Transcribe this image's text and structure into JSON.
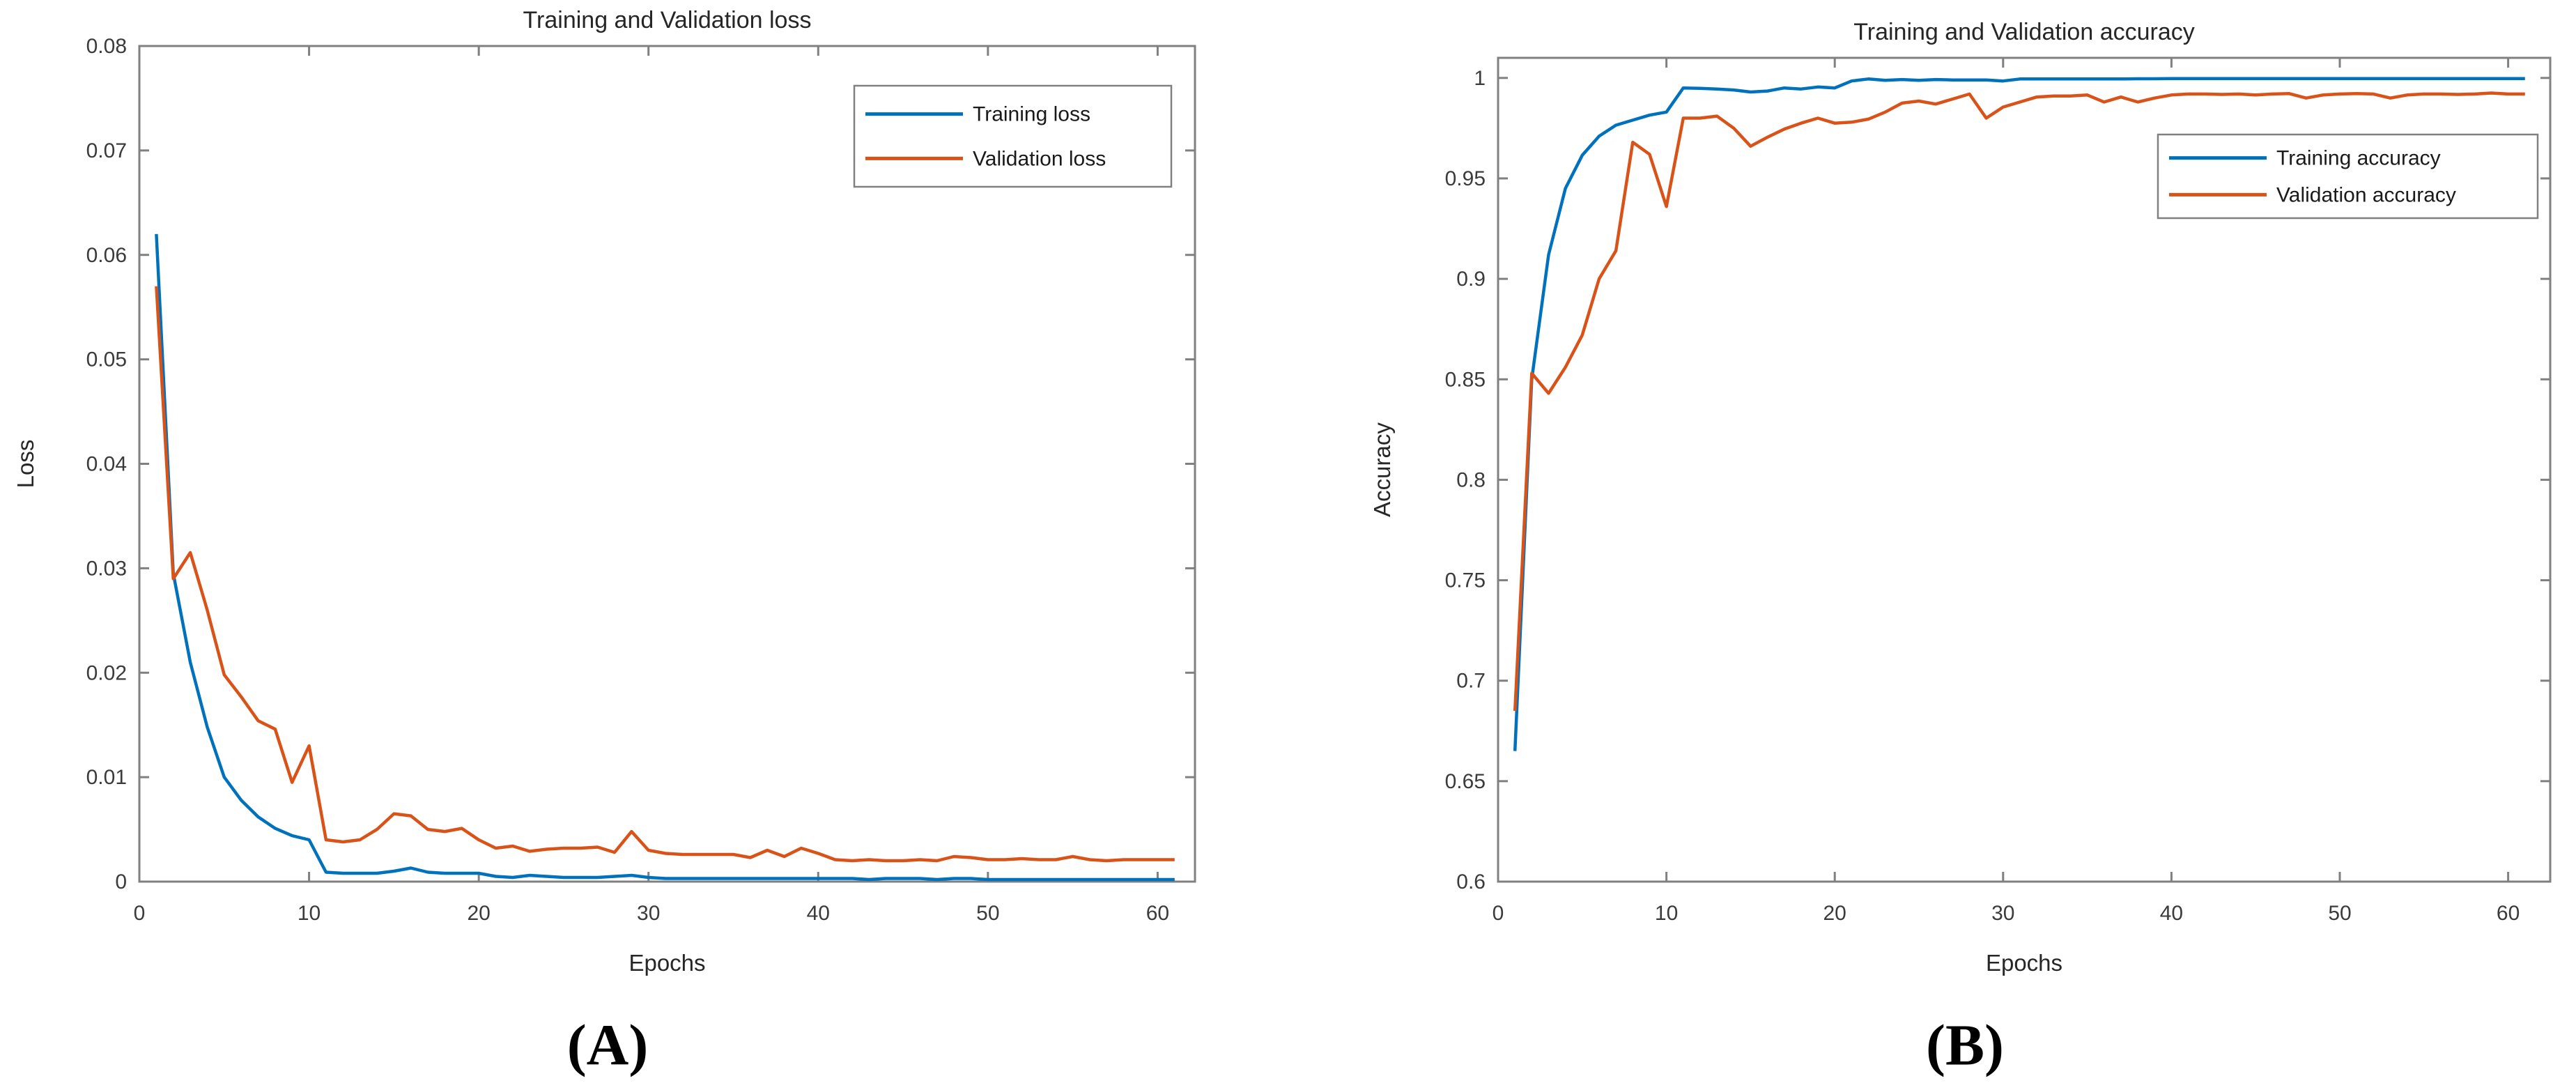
{
  "colors": {
    "training": "#0072BD",
    "validation": "#D95319",
    "axis": "#808080",
    "tick_text": "#3b3b3b",
    "label_text": "#262626",
    "background": "#ffffff"
  },
  "captions": {
    "a": "(A)",
    "b": "(B)"
  },
  "chart_data": [
    {
      "id": "loss",
      "type": "line",
      "title": "Training and Validation loss",
      "xlabel": "Epochs",
      "ylabel": "Loss",
      "xlim": [
        0,
        62.2
      ],
      "ylim": [
        0,
        0.08
      ],
      "grid": false,
      "legend_position": "top-right-inside",
      "xticks": [
        {
          "v": 0,
          "label": "0"
        },
        {
          "v": 10,
          "label": "10"
        },
        {
          "v": 20,
          "label": "20"
        },
        {
          "v": 30,
          "label": "30"
        },
        {
          "v": 40,
          "label": "40"
        },
        {
          "v": 50,
          "label": "50"
        },
        {
          "v": 60,
          "label": "60"
        }
      ],
      "yticks": [
        {
          "v": 0,
          "label": "0"
        },
        {
          "v": 0.01,
          "label": "0.01"
        },
        {
          "v": 0.02,
          "label": "0.02"
        },
        {
          "v": 0.03,
          "label": "0.03"
        },
        {
          "v": 0.04,
          "label": "0.04"
        },
        {
          "v": 0.05,
          "label": "0.05"
        },
        {
          "v": 0.06,
          "label": "0.06"
        },
        {
          "v": 0.07,
          "label": "0.07"
        },
        {
          "v": 0.08,
          "label": "0.08"
        }
      ],
      "x": [
        1,
        2,
        3,
        4,
        5,
        6,
        7,
        8,
        9,
        10,
        11,
        12,
        13,
        14,
        15,
        16,
        17,
        18,
        19,
        20,
        21,
        22,
        23,
        24,
        25,
        26,
        27,
        28,
        29,
        30,
        31,
        32,
        33,
        34,
        35,
        36,
        37,
        38,
        39,
        40,
        41,
        42,
        43,
        44,
        45,
        46,
        47,
        48,
        49,
        50,
        51,
        52,
        53,
        54,
        55,
        56,
        57,
        58,
        59,
        60,
        61
      ],
      "series": [
        {
          "name": "Training loss",
          "color": "training",
          "values": [
            0.062,
            0.0295,
            0.021,
            0.0148,
            0.01,
            0.0078,
            0.0062,
            0.0051,
            0.0044,
            0.004,
            0.0009,
            0.0008,
            0.0008,
            0.0008,
            0.001,
            0.0013,
            0.0009,
            0.0008,
            0.0008,
            0.0008,
            0.0005,
            0.0004,
            0.0006,
            0.0005,
            0.0004,
            0.0004,
            0.0004,
            0.0005,
            0.0006,
            0.0004,
            0.0003,
            0.0003,
            0.0003,
            0.0003,
            0.0003,
            0.0003,
            0.0003,
            0.0003,
            0.0003,
            0.0003,
            0.0003,
            0.0003,
            0.0002,
            0.0003,
            0.0003,
            0.0003,
            0.0002,
            0.0003,
            0.0003,
            0.0002,
            0.0002,
            0.0002,
            0.0002,
            0.0002,
            0.0002,
            0.0002,
            0.0002,
            0.0002,
            0.0002,
            0.0002,
            0.0002
          ]
        },
        {
          "name": "Validation loss",
          "color": "validation",
          "values": [
            0.057,
            0.029,
            0.0315,
            0.026,
            0.0198,
            0.0177,
            0.0154,
            0.0146,
            0.0095,
            0.013,
            0.004,
            0.0038,
            0.004,
            0.005,
            0.0065,
            0.0063,
            0.005,
            0.0048,
            0.0051,
            0.004,
            0.0032,
            0.0034,
            0.0029,
            0.0031,
            0.0032,
            0.0032,
            0.0033,
            0.0028,
            0.0048,
            0.003,
            0.0027,
            0.0026,
            0.0026,
            0.0026,
            0.0026,
            0.0023,
            0.003,
            0.0024,
            0.0032,
            0.0027,
            0.0021,
            0.002,
            0.0021,
            0.002,
            0.002,
            0.0021,
            0.002,
            0.0024,
            0.0023,
            0.0021,
            0.0021,
            0.0022,
            0.0021,
            0.0021,
            0.0024,
            0.0021,
            0.002,
            0.0021,
            0.0021,
            0.0021,
            0.0021
          ]
        }
      ]
    },
    {
      "id": "accuracy",
      "type": "line",
      "title": "Training and Validation accuracy",
      "xlabel": "Epochs",
      "ylabel": "Accuracy",
      "xlim": [
        0,
        62.5
      ],
      "ylim": [
        0.6,
        1.01
      ],
      "grid": false,
      "legend_position": "top-right-inside",
      "xticks": [
        {
          "v": 0,
          "label": "0"
        },
        {
          "v": 10,
          "label": "10"
        },
        {
          "v": 20,
          "label": "20"
        },
        {
          "v": 30,
          "label": "30"
        },
        {
          "v": 40,
          "label": "40"
        },
        {
          "v": 50,
          "label": "50"
        },
        {
          "v": 60,
          "label": "60"
        }
      ],
      "yticks": [
        {
          "v": 0.6,
          "label": "0.6"
        },
        {
          "v": 0.65,
          "label": "0.65"
        },
        {
          "v": 0.7,
          "label": "0.7"
        },
        {
          "v": 0.75,
          "label": "0.75"
        },
        {
          "v": 0.8,
          "label": "0.8"
        },
        {
          "v": 0.85,
          "label": "0.85"
        },
        {
          "v": 0.9,
          "label": "0.9"
        },
        {
          "v": 0.95,
          "label": "0.95"
        },
        {
          "v": 1,
          "label": "1"
        }
      ],
      "x": [
        1,
        2,
        3,
        4,
        5,
        6,
        7,
        8,
        9,
        10,
        11,
        12,
        13,
        14,
        15,
        16,
        17,
        18,
        19,
        20,
        21,
        22,
        23,
        24,
        25,
        26,
        27,
        28,
        29,
        30,
        31,
        32,
        33,
        34,
        35,
        36,
        37,
        38,
        39,
        40,
        41,
        42,
        43,
        44,
        45,
        46,
        47,
        48,
        49,
        50,
        51,
        52,
        53,
        54,
        55,
        56,
        57,
        58,
        59,
        60,
        61
      ],
      "series": [
        {
          "name": "Training accuracy",
          "color": "training",
          "values": [
            0.665,
            0.85,
            0.912,
            0.945,
            0.9615,
            0.971,
            0.9765,
            0.979,
            0.9815,
            0.983,
            0.995,
            0.9948,
            0.9945,
            0.994,
            0.993,
            0.9935,
            0.995,
            0.9945,
            0.9955,
            0.995,
            0.9985,
            0.9995,
            0.9988,
            0.9992,
            0.9988,
            0.9992,
            0.999,
            0.999,
            0.999,
            0.9985,
            0.9995,
            0.9995,
            0.9995,
            0.9995,
            0.9995,
            0.9995,
            0.9995,
            0.9996,
            0.9996,
            0.9997,
            0.9997,
            0.9997,
            0.9997,
            0.9997,
            0.9997,
            0.9997,
            0.9997,
            0.9997,
            0.9997,
            0.9997,
            0.9997,
            0.9997,
            0.9997,
            0.9997,
            0.9997,
            0.9997,
            0.9997,
            0.9997,
            0.9997,
            0.9997,
            0.9997
          ]
        },
        {
          "name": "Validation accuracy",
          "color": "validation",
          "values": [
            0.685,
            0.853,
            0.843,
            0.856,
            0.872,
            0.9,
            0.914,
            0.968,
            0.962,
            0.936,
            0.98,
            0.98,
            0.981,
            0.975,
            0.966,
            0.9705,
            0.9745,
            0.9775,
            0.98,
            0.9775,
            0.978,
            0.9795,
            0.983,
            0.9875,
            0.9885,
            0.987,
            0.9895,
            0.992,
            0.98,
            0.9855,
            0.988,
            0.9905,
            0.991,
            0.991,
            0.9915,
            0.988,
            0.9905,
            0.988,
            0.99,
            0.9915,
            0.992,
            0.992,
            0.9918,
            0.992,
            0.9915,
            0.992,
            0.9922,
            0.99,
            0.9915,
            0.992,
            0.9922,
            0.992,
            0.99,
            0.9915,
            0.992,
            0.992,
            0.9918,
            0.992,
            0.9925,
            0.992,
            0.992
          ]
        }
      ]
    }
  ]
}
